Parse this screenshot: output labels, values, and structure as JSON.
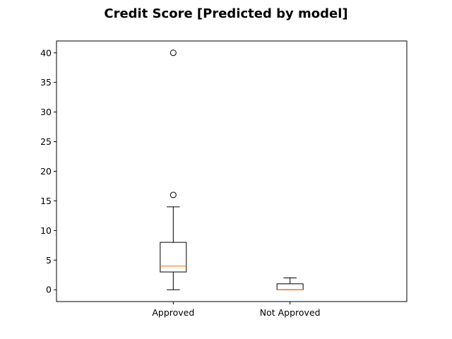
{
  "chart_data": {
    "type": "box",
    "title": "Credit Score [Predicted by model]",
    "xlabel": "",
    "ylabel": "",
    "categories": [
      "Approved",
      "Not Approved"
    ],
    "ylim": [
      -2,
      42
    ],
    "yticks": [
      0,
      5,
      10,
      15,
      20,
      25,
      30,
      35,
      40
    ],
    "grid": false,
    "boxes": [
      {
        "category": "Approved",
        "whisker_low": 0,
        "q1": 3,
        "median": 4,
        "q3": 8,
        "whisker_high": 14,
        "outliers": [
          16,
          40
        ]
      },
      {
        "category": "Not Approved",
        "whisker_low": 0,
        "q1": 0,
        "median": 0,
        "q3": 1,
        "whisker_high": 2,
        "outliers": []
      }
    ],
    "colors": {
      "box": "#000000",
      "median": "#ff7f0e",
      "outlier": "#000000"
    }
  }
}
